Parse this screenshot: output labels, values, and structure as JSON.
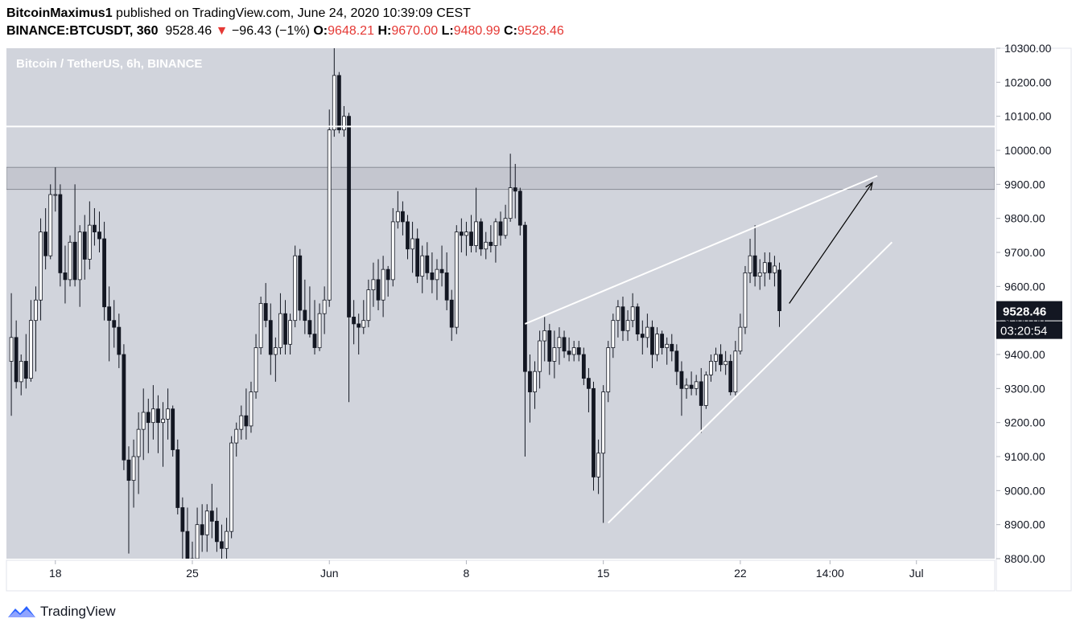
{
  "header": {
    "author": "BitcoinMaximus1",
    "published_text": " published on TradingView.com, June 24, 2020 10:39:09 CEST",
    "symbol": "BINANCE:BTCUSDT, 360",
    "last_price": "9528.46",
    "change_arrow": "▼",
    "change": "−96.43 (−1%)",
    "open_label": "O:",
    "open": "9648.21",
    "high_label": "H:",
    "high": "9670.00",
    "low_label": "L:",
    "low": "9480.99",
    "close_label": "C:",
    "close": "9528.46"
  },
  "footer": {
    "brand": "TradingView"
  },
  "colors": {
    "plot_bg": "#d1d4dc",
    "bull": "#ffffff",
    "bear": "#131722",
    "down_text": "#e53935",
    "annotation": "#ffffff",
    "zone": "#c4c6cf"
  },
  "chart_data": {
    "type": "candlestick",
    "title": "Bitcoin / TetherUS, 6h, BINANCE",
    "y_range": [
      8800,
      10300
    ],
    "y_ticks": [
      "10300.00",
      "10200.00",
      "10100.00",
      "10000.00",
      "9900.00",
      "9800.00",
      "9700.00",
      "9600.00",
      "9500.00",
      "9400.00",
      "9300.00",
      "9200.00",
      "9100.00",
      "9000.00",
      "8900.00",
      "8800.00"
    ],
    "x_ticks": [
      {
        "label": "18",
        "date": "2020-05-18"
      },
      {
        "label": "25",
        "date": "2020-05-25"
      },
      {
        "label": "Jun",
        "date": "2020-06-01"
      },
      {
        "label": "8",
        "date": "2020-06-08"
      },
      {
        "label": "15",
        "date": "2020-06-15"
      },
      {
        "label": "22",
        "date": "2020-06-22"
      },
      {
        "label": "14:00",
        "date": "2020-06-26T14:00"
      },
      {
        "label": "Jul",
        "date": "2020-07-01"
      }
    ],
    "x_range": [
      "2020-05-15T12:00",
      "2020-07-05T00:00"
    ],
    "price_label": "9528.46",
    "countdown_label": "03:20:54",
    "resistance_line": 10070,
    "zone": [
      9885,
      9950
    ],
    "wedge_upper": [
      [
        "2020-06-11T00:00",
        9490
      ],
      [
        "2020-06-29T00:00",
        9925
      ]
    ],
    "wedge_lower": [
      [
        "2020-06-15T06:00",
        8905
      ],
      [
        "2020-06-29T18:00",
        9730
      ]
    ],
    "arrow": [
      [
        "2020-06-24T12:00",
        9550
      ],
      [
        "2020-06-28T18:00",
        9905
      ]
    ],
    "candles": [
      [
        "2020-05-15T18:00",
        9380,
        9580,
        9220,
        9450
      ],
      [
        "2020-05-16T00:00",
        9450,
        9500,
        9300,
        9320
      ],
      [
        "2020-05-16T06:00",
        9320,
        9400,
        9280,
        9380
      ],
      [
        "2020-05-16T12:00",
        9380,
        9460,
        9300,
        9330
      ],
      [
        "2020-05-16T18:00",
        9330,
        9560,
        9320,
        9500
      ],
      [
        "2020-05-17T00:00",
        9500,
        9600,
        9350,
        9560
      ],
      [
        "2020-05-17T06:00",
        9560,
        9800,
        9500,
        9760
      ],
      [
        "2020-05-17T12:00",
        9760,
        9830,
        9650,
        9690
      ],
      [
        "2020-05-17T18:00",
        9690,
        9900,
        9680,
        9870
      ],
      [
        "2020-05-18T00:00",
        9870,
        9950,
        9820,
        9870
      ],
      [
        "2020-05-18T06:00",
        9870,
        9900,
        9600,
        9640
      ],
      [
        "2020-05-18T12:00",
        9640,
        9720,
        9550,
        9620
      ],
      [
        "2020-05-18T18:00",
        9620,
        9750,
        9600,
        9730
      ],
      [
        "2020-05-19T00:00",
        9730,
        9900,
        9600,
        9620
      ],
      [
        "2020-05-19T06:00",
        9620,
        9780,
        9540,
        9760
      ],
      [
        "2020-05-19T12:00",
        9760,
        9810,
        9620,
        9680
      ],
      [
        "2020-05-19T18:00",
        9680,
        9850,
        9650,
        9780
      ],
      [
        "2020-05-20T00:00",
        9780,
        9830,
        9720,
        9760
      ],
      [
        "2020-05-20T06:00",
        9760,
        9820,
        9700,
        9740
      ],
      [
        "2020-05-20T12:00",
        9740,
        9790,
        9500,
        9540
      ],
      [
        "2020-05-20T18:00",
        9540,
        9600,
        9380,
        9500
      ],
      [
        "2020-05-21T00:00",
        9500,
        9560,
        9420,
        9480
      ],
      [
        "2020-05-21T06:00",
        9480,
        9520,
        9360,
        9400
      ],
      [
        "2020-05-21T12:00",
        9400,
        9430,
        9060,
        9090
      ],
      [
        "2020-05-21T18:00",
        9090,
        9130,
        8815,
        9030
      ],
      [
        "2020-05-22T00:00",
        9030,
        9150,
        8950,
        9100
      ],
      [
        "2020-05-22T06:00",
        9100,
        9230,
        8990,
        9180
      ],
      [
        "2020-05-22T12:00",
        9180,
        9300,
        9090,
        9230
      ],
      [
        "2020-05-22T18:00",
        9230,
        9270,
        9110,
        9200
      ],
      [
        "2020-05-23T00:00",
        9200,
        9310,
        9150,
        9240
      ],
      [
        "2020-05-23T06:00",
        9240,
        9280,
        9110,
        9200
      ],
      [
        "2020-05-23T12:00",
        9200,
        9260,
        9070,
        9210
      ],
      [
        "2020-05-23T18:00",
        9210,
        9300,
        9150,
        9240
      ],
      [
        "2020-05-24T00:00",
        9240,
        9250,
        9100,
        9120
      ],
      [
        "2020-05-24T06:00",
        9120,
        9150,
        8930,
        8950
      ],
      [
        "2020-05-24T12:00",
        8950,
        8980,
        8780,
        8880
      ],
      [
        "2020-05-24T18:00",
        8880,
        8950,
        8700,
        8750
      ],
      [
        "2020-05-25T00:00",
        8750,
        8850,
        8700,
        8800
      ],
      [
        "2020-05-25T06:00",
        8800,
        8950,
        8760,
        8900
      ],
      [
        "2020-05-25T12:00",
        8900,
        8960,
        8820,
        8870
      ],
      [
        "2020-05-25T18:00",
        8870,
        8960,
        8820,
        8940
      ],
      [
        "2020-05-26T00:00",
        8940,
        9020,
        8860,
        8910
      ],
      [
        "2020-05-26T06:00",
        8910,
        8950,
        8820,
        8850
      ],
      [
        "2020-05-26T12:00",
        8850,
        8900,
        8800,
        8830
      ],
      [
        "2020-05-26T18:00",
        8830,
        8920,
        8800,
        8880
      ],
      [
        "2020-05-27T00:00",
        8880,
        9160,
        8860,
        9140
      ],
      [
        "2020-05-27T06:00",
        9140,
        9200,
        9100,
        9180
      ],
      [
        "2020-05-27T12:00",
        9180,
        9250,
        9150,
        9220
      ],
      [
        "2020-05-27T18:00",
        9220,
        9300,
        9150,
        9190
      ],
      [
        "2020-05-28T00:00",
        9190,
        9320,
        9170,
        9290
      ],
      [
        "2020-05-28T06:00",
        9290,
        9460,
        9270,
        9420
      ],
      [
        "2020-05-28T12:00",
        9420,
        9570,
        9400,
        9550
      ],
      [
        "2020-05-28T18:00",
        9550,
        9610,
        9480,
        9500
      ],
      [
        "2020-05-29T00:00",
        9500,
        9550,
        9340,
        9400
      ],
      [
        "2020-05-29T06:00",
        9400,
        9450,
        9320,
        9420
      ],
      [
        "2020-05-29T12:00",
        9420,
        9580,
        9400,
        9520
      ],
      [
        "2020-05-29T18:00",
        9520,
        9560,
        9400,
        9430
      ],
      [
        "2020-05-30T00:00",
        9430,
        9520,
        9400,
        9500
      ],
      [
        "2020-05-30T06:00",
        9500,
        9720,
        9480,
        9690
      ],
      [
        "2020-05-30T12:00",
        9690,
        9710,
        9500,
        9530
      ],
      [
        "2020-05-30T18:00",
        9530,
        9620,
        9460,
        9500
      ],
      [
        "2020-05-31T00:00",
        9500,
        9600,
        9450,
        9460
      ],
      [
        "2020-05-31T06:00",
        9460,
        9560,
        9400,
        9420
      ],
      [
        "2020-05-31T12:00",
        9420,
        9550,
        9410,
        9520
      ],
      [
        "2020-05-31T18:00",
        9520,
        9600,
        9460,
        9560
      ],
      [
        "2020-06-01T00:00",
        9560,
        10120,
        9540,
        10060
      ],
      [
        "2020-06-01T06:00",
        10060,
        10380,
        10040,
        10220
      ],
      [
        "2020-06-01T12:00",
        10220,
        10230,
        10050,
        10060
      ],
      [
        "2020-06-01T18:00",
        10060,
        10130,
        10040,
        10100
      ],
      [
        "2020-06-02T00:00",
        10100,
        10110,
        9260,
        9510
      ],
      [
        "2020-06-02T06:00",
        9510,
        9560,
        9430,
        9490
      ],
      [
        "2020-06-02T12:00",
        9490,
        9520,
        9400,
        9480
      ],
      [
        "2020-06-02T18:00",
        9480,
        9560,
        9460,
        9500
      ],
      [
        "2020-06-03T00:00",
        9500,
        9620,
        9480,
        9590
      ],
      [
        "2020-06-03T06:00",
        9590,
        9670,
        9540,
        9620
      ],
      [
        "2020-06-03T12:00",
        9620,
        9680,
        9530,
        9560
      ],
      [
        "2020-06-03T18:00",
        9560,
        9690,
        9510,
        9650
      ],
      [
        "2020-06-04T00:00",
        9650,
        9660,
        9570,
        9620
      ],
      [
        "2020-06-04T06:00",
        9620,
        9830,
        9600,
        9790
      ],
      [
        "2020-06-04T12:00",
        9790,
        9880,
        9770,
        9820
      ],
      [
        "2020-06-04T18:00",
        9820,
        9850,
        9750,
        9790
      ],
      [
        "2020-06-05T00:00",
        9790,
        9810,
        9680,
        9710
      ],
      [
        "2020-06-05T06:00",
        9710,
        9790,
        9640,
        9740
      ],
      [
        "2020-06-05T12:00",
        9740,
        9770,
        9610,
        9630
      ],
      [
        "2020-06-05T18:00",
        9630,
        9720,
        9580,
        9690
      ],
      [
        "2020-06-06T00:00",
        9690,
        9730,
        9620,
        9640
      ],
      [
        "2020-06-06T06:00",
        9640,
        9700,
        9580,
        9620
      ],
      [
        "2020-06-06T12:00",
        9620,
        9680,
        9560,
        9650
      ],
      [
        "2020-06-06T18:00",
        9650,
        9720,
        9600,
        9640
      ],
      [
        "2020-06-07T00:00",
        9640,
        9700,
        9530,
        9560
      ],
      [
        "2020-06-07T06:00",
        9560,
        9590,
        9440,
        9480
      ],
      [
        "2020-06-07T12:00",
        9480,
        9780,
        9460,
        9760
      ],
      [
        "2020-06-07T18:00",
        9760,
        9800,
        9700,
        9750
      ],
      [
        "2020-06-08T00:00",
        9750,
        9790,
        9690,
        9760
      ],
      [
        "2020-06-08T06:00",
        9760,
        9810,
        9700,
        9720
      ],
      [
        "2020-06-08T12:00",
        9720,
        9890,
        9700,
        9790
      ],
      [
        "2020-06-08T18:00",
        9790,
        9800,
        9690,
        9710
      ],
      [
        "2020-06-09T00:00",
        9710,
        9760,
        9680,
        9730
      ],
      [
        "2020-06-09T06:00",
        9730,
        9780,
        9700,
        9720
      ],
      [
        "2020-06-09T12:00",
        9720,
        9800,
        9670,
        9790
      ],
      [
        "2020-06-09T18:00",
        9790,
        9820,
        9720,
        9750
      ],
      [
        "2020-06-10T00:00",
        9750,
        9840,
        9740,
        9800
      ],
      [
        "2020-06-10T06:00",
        9800,
        9990,
        9790,
        9890
      ],
      [
        "2020-06-10T12:00",
        9890,
        9960,
        9800,
        9880
      ],
      [
        "2020-06-10T18:00",
        9880,
        9890,
        9750,
        9780
      ],
      [
        "2020-06-11T00:00",
        9780,
        9790,
        9100,
        9350
      ],
      [
        "2020-06-11T06:00",
        9350,
        9400,
        9200,
        9290
      ],
      [
        "2020-06-11T12:00",
        9290,
        9380,
        9240,
        9350
      ],
      [
        "2020-06-11T18:00",
        9350,
        9470,
        9300,
        9440
      ],
      [
        "2020-06-12T00:00",
        9440,
        9510,
        9380,
        9470
      ],
      [
        "2020-06-12T06:00",
        9470,
        9490,
        9340,
        9380
      ],
      [
        "2020-06-12T12:00",
        9380,
        9470,
        9330,
        9420
      ],
      [
        "2020-06-12T18:00",
        9420,
        9480,
        9370,
        9450
      ],
      [
        "2020-06-13T00:00",
        9450,
        9470,
        9390,
        9410
      ],
      [
        "2020-06-13T06:00",
        9410,
        9450,
        9380,
        9400
      ],
      [
        "2020-06-13T12:00",
        9400,
        9440,
        9380,
        9420
      ],
      [
        "2020-06-13T18:00",
        9420,
        9440,
        9380,
        9400
      ],
      [
        "2020-06-14T00:00",
        9400,
        9420,
        9310,
        9330
      ],
      [
        "2020-06-14T06:00",
        9330,
        9360,
        9230,
        9300
      ],
      [
        "2020-06-14T12:00",
        9300,
        9320,
        9000,
        9040
      ],
      [
        "2020-06-14T18:00",
        9040,
        9150,
        8990,
        9110
      ],
      [
        "2020-06-15T00:00",
        9110,
        9310,
        8905,
        9290
      ],
      [
        "2020-06-15T06:00",
        9290,
        9440,
        9260,
        9420
      ],
      [
        "2020-06-15T12:00",
        9420,
        9520,
        9390,
        9500
      ],
      [
        "2020-06-15T18:00",
        9500,
        9560,
        9450,
        9540
      ],
      [
        "2020-06-16T00:00",
        9540,
        9570,
        9440,
        9470
      ],
      [
        "2020-06-16T06:00",
        9470,
        9530,
        9440,
        9500
      ],
      [
        "2020-06-16T12:00",
        9500,
        9580,
        9480,
        9540
      ],
      [
        "2020-06-16T18:00",
        9540,
        9550,
        9440,
        9460
      ],
      [
        "2020-06-17T00:00",
        9460,
        9500,
        9400,
        9450
      ],
      [
        "2020-06-17T06:00",
        9450,
        9520,
        9420,
        9480
      ],
      [
        "2020-06-17T12:00",
        9480,
        9500,
        9360,
        9400
      ],
      [
        "2020-06-17T18:00",
        9400,
        9480,
        9380,
        9460
      ],
      [
        "2020-06-18T00:00",
        9460,
        9470,
        9400,
        9420
      ],
      [
        "2020-06-18T06:00",
        9420,
        9450,
        9370,
        9430
      ],
      [
        "2020-06-18T12:00",
        9430,
        9460,
        9380,
        9410
      ],
      [
        "2020-06-18T18:00",
        9410,
        9430,
        9310,
        9350
      ],
      [
        "2020-06-19T00:00",
        9350,
        9380,
        9220,
        9300
      ],
      [
        "2020-06-19T06:00",
        9300,
        9330,
        9270,
        9310
      ],
      [
        "2020-06-19T12:00",
        9310,
        9350,
        9280,
        9300
      ],
      [
        "2020-06-19T18:00",
        9300,
        9340,
        9280,
        9320
      ],
      [
        "2020-06-20T00:00",
        9320,
        9360,
        9170,
        9250
      ],
      [
        "2020-06-20T06:00",
        9250,
        9350,
        9240,
        9340
      ],
      [
        "2020-06-20T12:00",
        9340,
        9400,
        9320,
        9380
      ],
      [
        "2020-06-20T18:00",
        9380,
        9420,
        9350,
        9400
      ],
      [
        "2020-06-21T00:00",
        9400,
        9430,
        9350,
        9370
      ],
      [
        "2020-06-21T06:00",
        9370,
        9410,
        9340,
        9380
      ],
      [
        "2020-06-21T12:00",
        9380,
        9400,
        9280,
        9290
      ],
      [
        "2020-06-21T18:00",
        9290,
        9440,
        9280,
        9410
      ],
      [
        "2020-06-22T00:00",
        9410,
        9520,
        9400,
        9480
      ],
      [
        "2020-06-22T06:00",
        9480,
        9660,
        9460,
        9640
      ],
      [
        "2020-06-22T12:00",
        9640,
        9740,
        9610,
        9690
      ],
      [
        "2020-06-22T18:00",
        9690,
        9780,
        9600,
        9630
      ],
      [
        "2020-06-23T00:00",
        9630,
        9680,
        9590,
        9640
      ],
      [
        "2020-06-23T06:00",
        9640,
        9700,
        9600,
        9670
      ],
      [
        "2020-06-23T12:00",
        9670,
        9700,
        9620,
        9640
      ],
      [
        "2020-06-23T18:00",
        9640,
        9690,
        9600,
        9660
      ],
      [
        "2020-06-24T00:00",
        9648.21,
        9670,
        9480.99,
        9528.46
      ]
    ]
  }
}
